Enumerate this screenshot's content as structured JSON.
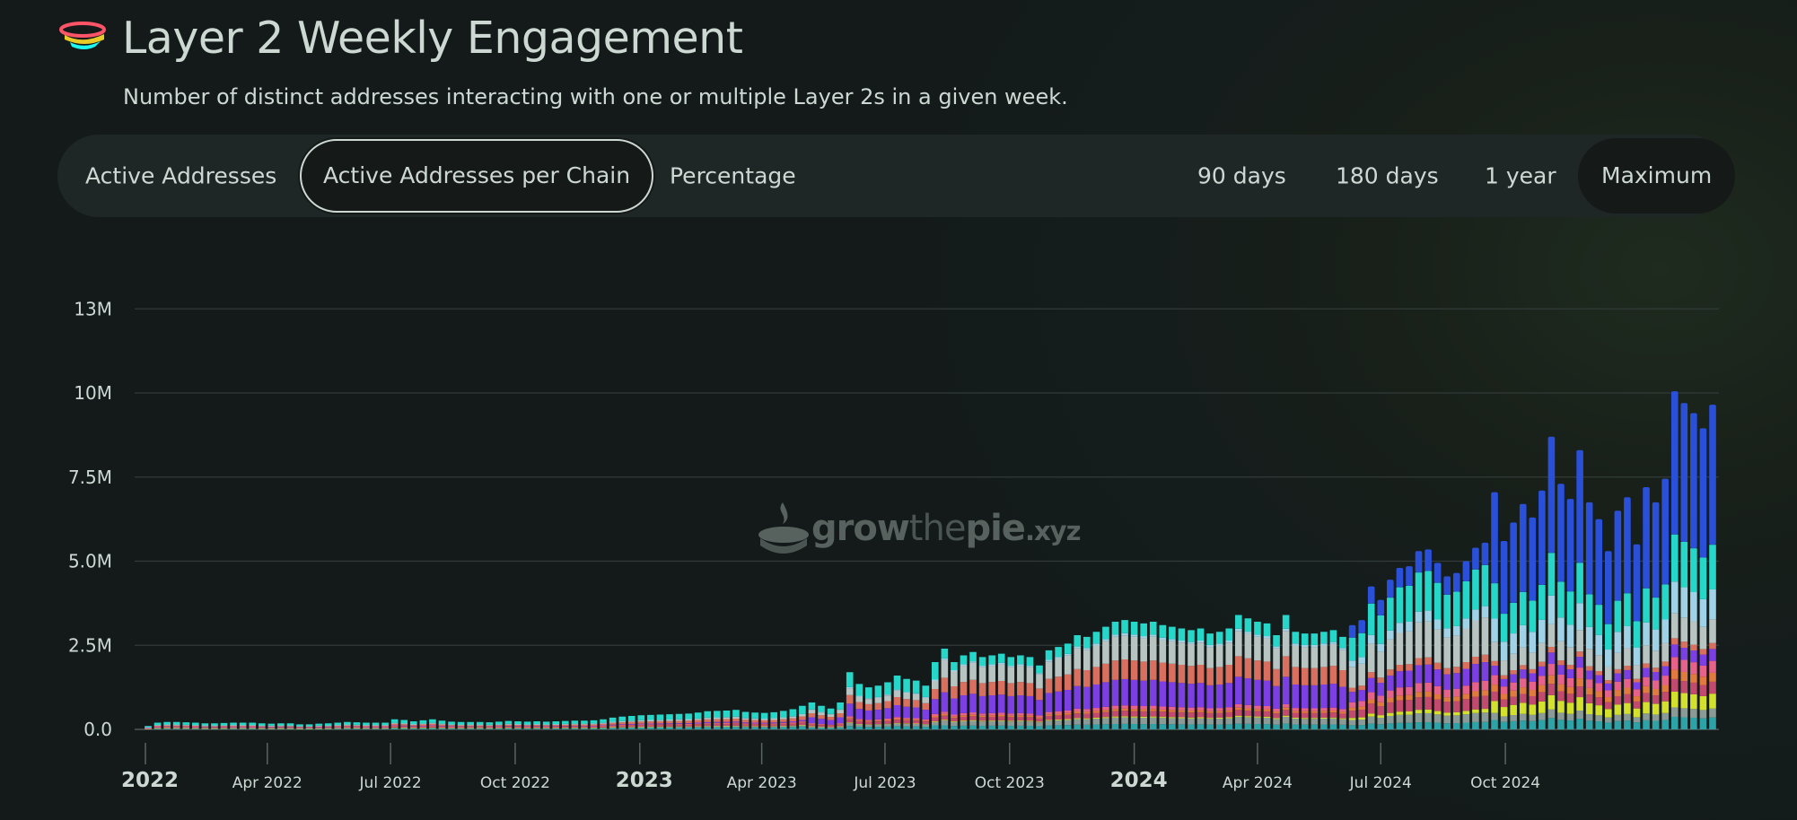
{
  "header": {
    "title": "Layer 2 Weekly Engagement",
    "subtitle": "Number of distinct addresses interacting with one or multiple Layer 2s in a given week."
  },
  "metric_tabs": [
    {
      "label": "Active Addresses",
      "selected": false
    },
    {
      "label": "Active Addresses per Chain",
      "selected": true
    },
    {
      "label": "Percentage",
      "selected": false
    }
  ],
  "range_tabs": [
    {
      "label": "90 days",
      "selected": false
    },
    {
      "label": "180 days",
      "selected": false
    },
    {
      "label": "1 year",
      "selected": false
    },
    {
      "label": "Maximum",
      "selected": true
    }
  ],
  "watermark": {
    "grow": "grow",
    "the": "the",
    "pie": "pie",
    "xyz": ".xyz"
  },
  "chart_data": {
    "type": "bar",
    "stacked": true,
    "y_ticks": [
      "13M",
      "10M",
      "7.5M",
      "5.0M",
      "2.5M",
      "0.0"
    ],
    "y_tick_values": [
      12500000,
      10000000,
      7500000,
      5000000,
      2500000,
      0
    ],
    "ylim": [
      0,
      12500000
    ],
    "x_start": "2022-01-03",
    "x_ticks": [
      {
        "label": "2022",
        "date": "2022-01-01",
        "major": true
      },
      {
        "label": "Apr 2022",
        "date": "2022-04-01",
        "major": false
      },
      {
        "label": "Jul 2022",
        "date": "2022-07-01",
        "major": false
      },
      {
        "label": "Oct 2022",
        "date": "2022-10-01",
        "major": false
      },
      {
        "label": "2023",
        "date": "2023-01-01",
        "major": true
      },
      {
        "label": "Apr 2023",
        "date": "2023-04-01",
        "major": false
      },
      {
        "label": "Jul 2023",
        "date": "2023-07-01",
        "major": false
      },
      {
        "label": "Oct 2023",
        "date": "2023-10-01",
        "major": false
      },
      {
        "label": "2024",
        "date": "2024-01-01",
        "major": true
      },
      {
        "label": "Apr 2024",
        "date": "2024-04-01",
        "major": false
      },
      {
        "label": "Jul 2024",
        "date": "2024-07-01",
        "major": false
      },
      {
        "label": "Oct 2024",
        "date": "2024-10-01",
        "major": false
      }
    ],
    "grid": true,
    "legend": "none",
    "series_colors": [
      "#2da3a7",
      "#8a9a96",
      "#d4e02e",
      "#c24a6e",
      "#e07a3e",
      "#e7628a",
      "#7b3fe4",
      "#d9705f",
      "#b8c4c2",
      "#9fd2e6",
      "#26d6c9",
      "#2a4fd8"
    ],
    "total_weekly": [
      100000,
      200000,
      220000,
      220000,
      210000,
      200000,
      180000,
      180000,
      190000,
      200000,
      200000,
      200000,
      180000,
      170000,
      180000,
      180000,
      150000,
      150000,
      170000,
      180000,
      200000,
      220000,
      210000,
      200000,
      200000,
      200000,
      300000,
      280000,
      240000,
      270000,
      300000,
      260000,
      230000,
      220000,
      220000,
      220000,
      210000,
      230000,
      250000,
      240000,
      230000,
      240000,
      230000,
      240000,
      250000,
      260000,
      260000,
      270000,
      300000,
      350000,
      380000,
      400000,
      420000,
      430000,
      440000,
      450000,
      460000,
      470000,
      500000,
      540000,
      550000,
      560000,
      580000,
      520000,
      500000,
      490000,
      510000,
      550000,
      600000,
      700000,
      800000,
      700000,
      620000,
      800000,
      1700000,
      1350000,
      1250000,
      1300000,
      1400000,
      1600000,
      1500000,
      1450000,
      1300000,
      2000000,
      2400000,
      2000000,
      2200000,
      2300000,
      2150000,
      2200000,
      2250000,
      2150000,
      2200000,
      2150000,
      1900000,
      2350000,
      2450000,
      2550000,
      2800000,
      2750000,
      2900000,
      3050000,
      3200000,
      3250000,
      3200000,
      3150000,
      3200000,
      3100000,
      3050000,
      3000000,
      2950000,
      3000000,
      2850000,
      2900000,
      3000000,
      3400000,
      3300000,
      3200000,
      3150000,
      2800000,
      3400000,
      2900000,
      2850000,
      2850000,
      2900000,
      2950000,
      2750000,
      3100000,
      3250000,
      4250000,
      3850000,
      4450000,
      4800000,
      4850000,
      5300000,
      5350000,
      4950000,
      4550000,
      4650000,
      5000000,
      5400000,
      5550000,
      7050000,
      5600000,
      6150000,
      6700000,
      6300000,
      7100000,
      8700000,
      7300000,
      6850000,
      8300000,
      6750000,
      6250000,
      5300000,
      6500000,
      6900000,
      5500000,
      7200000,
      6750000,
      7450000,
      10050000,
      9700000,
      9400000,
      8950000,
      9650000
    ]
  }
}
